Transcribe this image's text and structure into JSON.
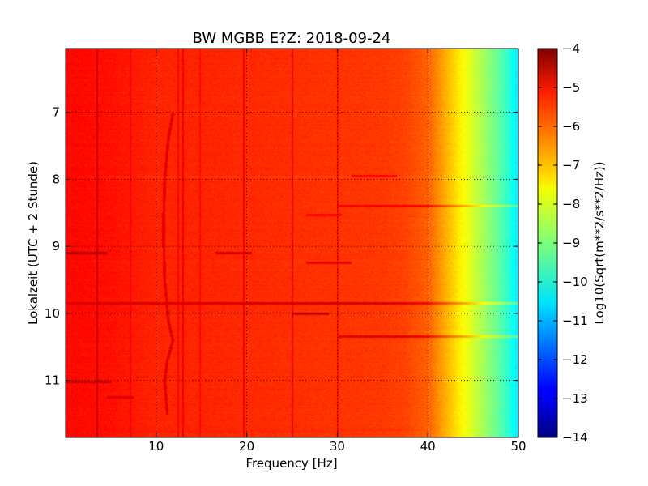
{
  "chart_data": {
    "type": "heatmap",
    "title": "BW MGBB E?Z: 2018-09-24",
    "xlabel": "Frequency [Hz]",
    "ylabel": "Lokalzeit (UTC + 2 Stunde)",
    "xlim": [
      0,
      50
    ],
    "ylim": [
      11.85,
      6.05
    ],
    "y_inverted": true,
    "x_ticks": [
      10,
      20,
      30,
      40,
      50
    ],
    "x_tick_labels": [
      "10",
      "20",
      "30",
      "40",
      "50"
    ],
    "y_ticks": [
      7,
      8,
      9,
      10,
      11
    ],
    "y_tick_labels": [
      "7",
      "8",
      "9",
      "10",
      "11"
    ],
    "grid": true,
    "colormap": "jet",
    "colorbar": {
      "label": "Log10(Sqrt(m**2/s**2/Hz))",
      "range": [
        -14,
        -4
      ],
      "ticks": [
        -4,
        -5,
        -6,
        -7,
        -8,
        -9,
        -10,
        -11,
        -12,
        -13,
        -14
      ],
      "tick_labels": [
        "−4",
        "−5",
        "−6",
        "−7",
        "−8",
        "−9",
        "−10",
        "−11",
        "−12",
        "−13",
        "−14"
      ]
    },
    "spectral_profile": {
      "frequency_hz": [
        0,
        5,
        10,
        15,
        20,
        25,
        30,
        35,
        37.5,
        40,
        41,
        42,
        43,
        44,
        45,
        46,
        47,
        48,
        49,
        50
      ],
      "level": [
        -5.3,
        -5.4,
        -5.6,
        -5.6,
        -5.65,
        -5.7,
        -5.75,
        -5.8,
        -5.9,
        -6.2,
        -6.6,
        -7.0,
        -7.4,
        -7.8,
        -8.2,
        -8.6,
        -9.0,
        -9.4,
        -9.9,
        -10.5
      ]
    },
    "narrowband_lines": [
      {
        "frequency_hz": 3.4,
        "level": -4.6
      },
      {
        "frequency_hz": 7.1,
        "level": -5.0
      },
      {
        "frequency_hz": 12.4,
        "level": -5.1
      },
      {
        "frequency_hz": 12.9,
        "level": -5.0
      },
      {
        "frequency_hz": 14.8,
        "level": -5.2
      },
      {
        "frequency_hz": 19.6,
        "level": -5.0
      },
      {
        "frequency_hz": 25.0,
        "level": -4.9
      },
      {
        "frequency_hz": 30.0,
        "level": -5.2
      }
    ],
    "drifting_line": {
      "level": -5.0,
      "points": [
        {
          "time": 7.0,
          "frequency_hz": 11.8
        },
        {
          "time": 7.4,
          "frequency_hz": 11.3
        },
        {
          "time": 8.0,
          "frequency_hz": 10.9
        },
        {
          "time": 8.5,
          "frequency_hz": 10.8
        },
        {
          "time": 9.0,
          "frequency_hz": 10.8
        },
        {
          "time": 9.5,
          "frequency_hz": 10.9
        },
        {
          "time": 9.8,
          "frequency_hz": 11.1
        },
        {
          "time": 10.1,
          "frequency_hz": 11.3
        },
        {
          "time": 10.4,
          "frequency_hz": 11.8
        },
        {
          "time": 10.7,
          "frequency_hz": 11.2
        },
        {
          "time": 11.0,
          "frequency_hz": 10.9
        },
        {
          "time": 11.5,
          "frequency_hz": 11.2
        }
      ]
    },
    "horizontal_bands": [
      {
        "time": 9.84,
        "f_start": 0,
        "f_end": 50,
        "level": -4.9
      },
      {
        "time": 10.34,
        "f_start": 30,
        "f_end": 50,
        "level": -5.0
      },
      {
        "time": 8.39,
        "f_start": 30,
        "f_end": 50,
        "level": -5.2
      },
      {
        "time": 10.0,
        "f_start": 25,
        "f_end": 29,
        "level": -4.7
      },
      {
        "time": 9.1,
        "f_start": 0,
        "f_end": 4.5,
        "level": -4.6
      },
      {
        "time": 11.02,
        "f_start": 0,
        "f_end": 5,
        "level": -4.7
      },
      {
        "time": 9.09,
        "f_start": 16.5,
        "f_end": 20.5,
        "level": -4.9
      },
      {
        "time": 9.24,
        "f_start": 26.5,
        "f_end": 31.5,
        "level": -5.1
      },
      {
        "time": 7.95,
        "f_start": 31.5,
        "f_end": 36.5,
        "level": -5.3
      },
      {
        "time": 8.53,
        "f_start": 26.5,
        "f_end": 30.5,
        "level": -5.3
      },
      {
        "time": 11.25,
        "f_start": 4.5,
        "f_end": 7.5,
        "level": -4.9
      }
    ]
  }
}
